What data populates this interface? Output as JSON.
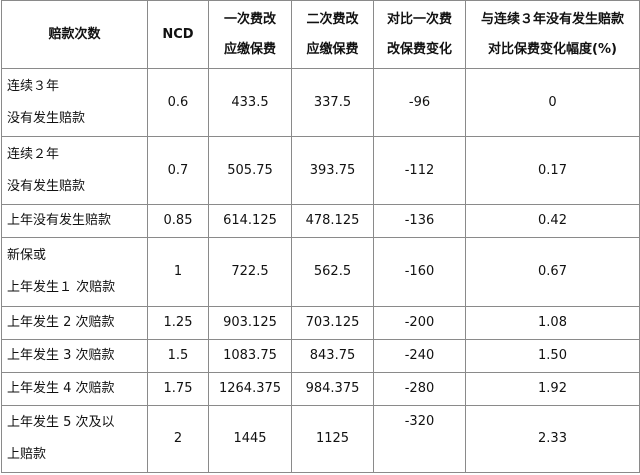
{
  "headers": [
    [
      "赔款次数"
    ],
    [
      "NCD"
    ],
    [
      "一次费改",
      "应缴保费"
    ],
    [
      "二次费改",
      "应缴保费"
    ],
    [
      "对比一次费",
      "改保费变化"
    ],
    [
      "与连续３年没有发生赔款",
      "对比保费变化幅度(%)"
    ]
  ],
  "rows": [
    {
      "label": [
        "连续３年",
        "没有发生赔款"
      ],
      "ncd": "0.6",
      "first": "433.5",
      "second": "337.5",
      "diff": "-96",
      "pct": "0"
    },
    {
      "label": [
        "连续２年",
        "没有发生赔款"
      ],
      "ncd": "0.7",
      "first": "505.75",
      "second": "393.75",
      "diff": "-112",
      "pct": "0.17"
    },
    {
      "label": [
        "上年没有发生赔款"
      ],
      "ncd": "0.85",
      "first": "614.125",
      "second": "478.125",
      "diff": "-136",
      "pct": "0.42"
    },
    {
      "label": [
        "新保或",
        "上年发生１ 次赔款"
      ],
      "ncd": "1",
      "first": "722.5",
      "second": "562.5",
      "diff": "-160",
      "pct": "0.67"
    },
    {
      "label": [
        "上年发生 2 次赔款"
      ],
      "ncd": "1.25",
      "first": "903.125",
      "second": "703.125",
      "diff": "-200",
      "pct": "1.08"
    },
    {
      "label": [
        "上年发生 3 次赔款"
      ],
      "ncd": "1.5",
      "first": "1083.75",
      "second": "843.75",
      "diff": "-240",
      "pct": "1.50"
    },
    {
      "label": [
        "上年发生 4 次赔款"
      ],
      "ncd": "1.75",
      "first": "1264.375",
      "second": "984.375",
      "diff": "-280",
      "pct": "1.92"
    },
    {
      "label": [
        "上年发生 5 次及以",
        "上赔款"
      ],
      "ncd": "2",
      "first": "1445",
      "second": "1125",
      "diff": "-320",
      "pct": "2.33"
    }
  ]
}
